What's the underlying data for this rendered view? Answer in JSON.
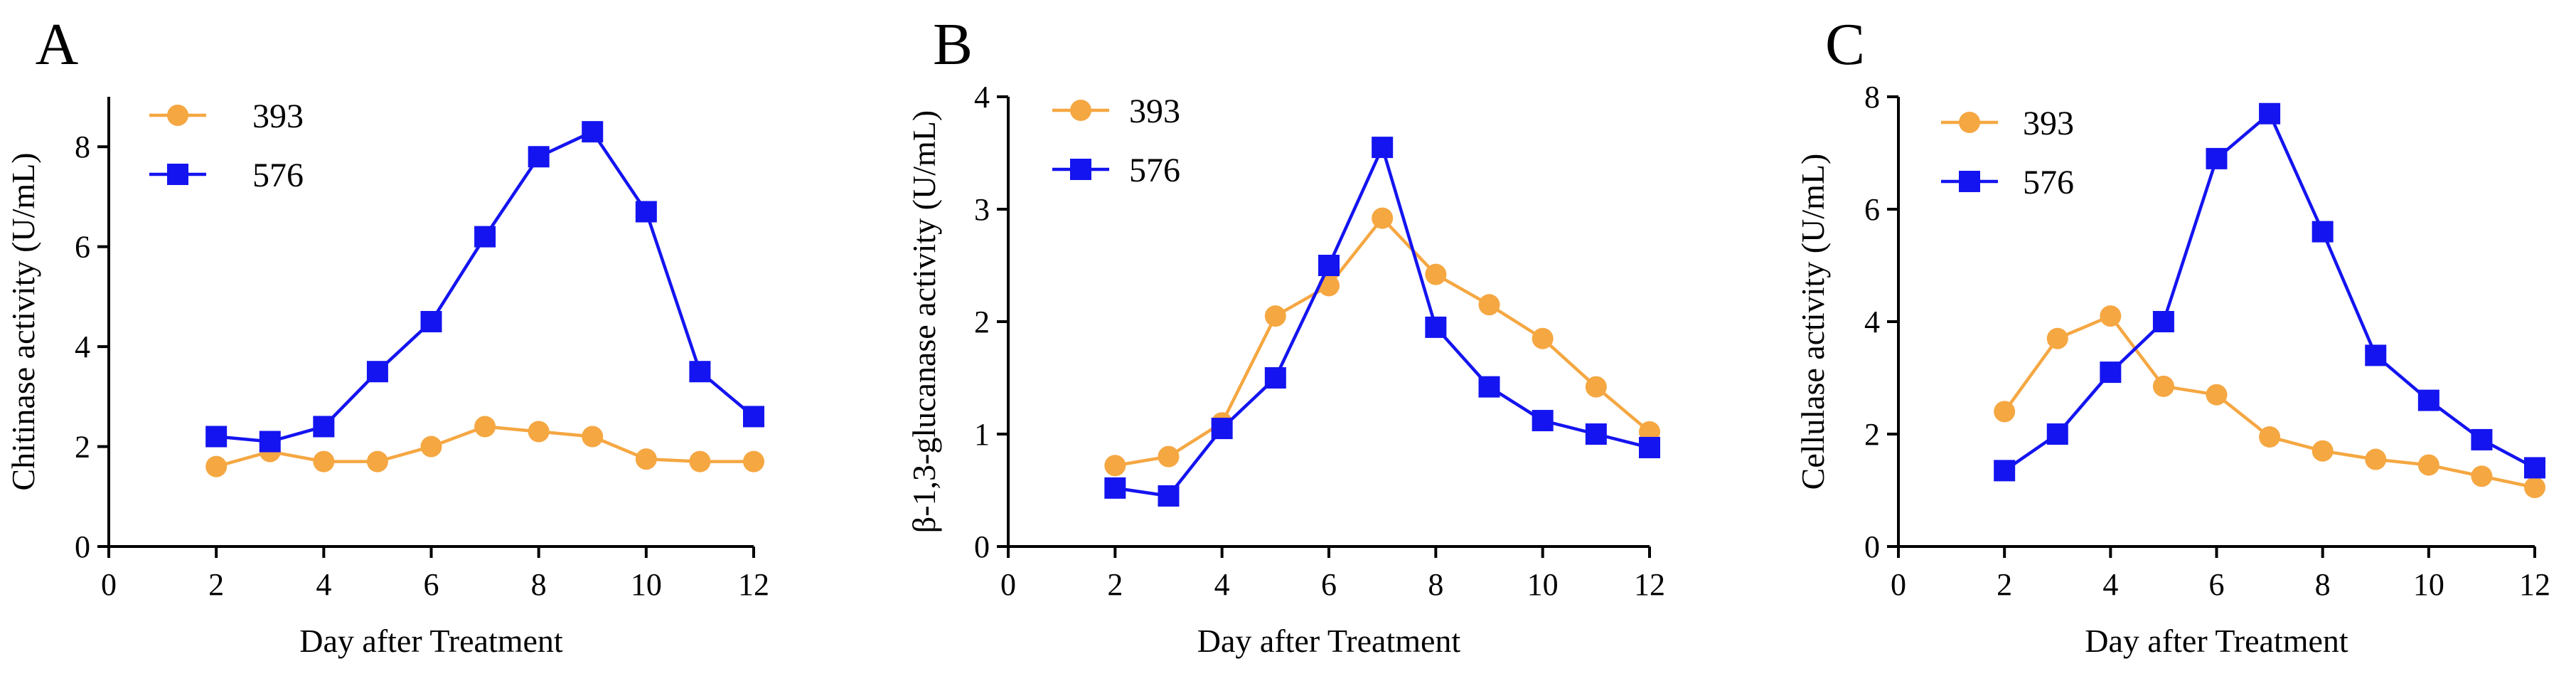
{
  "colors": {
    "series_393": "#F5A742",
    "series_576": "#1414F0",
    "axis": "#000000"
  },
  "legend": {
    "labels": [
      "393",
      "576"
    ],
    "placement": "top-left"
  },
  "chart_data": [
    {
      "panel": "A",
      "type": "line",
      "xlabel": "Day after Treatment",
      "ylabel": "Chitinase activity (U/mL)",
      "xlim": [
        0,
        12
      ],
      "ylim": [
        0,
        9
      ],
      "xticks": [
        0,
        2,
        4,
        6,
        8,
        10,
        12
      ],
      "yticks": [
        0,
        2,
        4,
        6,
        8
      ],
      "x": [
        2,
        3,
        4,
        5,
        6,
        7,
        8,
        9,
        10,
        11,
        12
      ],
      "series": [
        {
          "name": "393",
          "values": [
            1.6,
            1.9,
            1.7,
            1.7,
            2.0,
            2.4,
            2.3,
            2.2,
            1.75,
            1.7,
            1.7
          ]
        },
        {
          "name": "576",
          "values": [
            2.2,
            2.1,
            2.4,
            3.5,
            4.5,
            6.2,
            7.8,
            8.3,
            6.7,
            3.5,
            2.6
          ]
        }
      ]
    },
    {
      "panel": "B",
      "type": "line",
      "xlabel": "Day after Treatment",
      "ylabel": "β-1,3-glucanase activity (U/mL)",
      "xlim": [
        0,
        12
      ],
      "ylim": [
        0,
        4
      ],
      "xticks": [
        0,
        2,
        4,
        6,
        8,
        10,
        12
      ],
      "yticks": [
        0,
        1,
        2,
        3,
        4
      ],
      "x": [
        2,
        3,
        4,
        5,
        6,
        7,
        8,
        9,
        10,
        11,
        12
      ],
      "series": [
        {
          "name": "393",
          "values": [
            0.72,
            0.8,
            1.1,
            2.05,
            2.32,
            2.92,
            2.42,
            2.15,
            1.85,
            1.42,
            1.02
          ]
        },
        {
          "name": "576",
          "values": [
            0.52,
            0.45,
            1.05,
            1.5,
            2.5,
            3.55,
            1.95,
            1.42,
            1.12,
            1.0,
            0.88
          ]
        }
      ]
    },
    {
      "panel": "C",
      "type": "line",
      "xlabel": "Day after Treatment",
      "ylabel": "Cellulase activity (U/mL)",
      "xlim": [
        0,
        12
      ],
      "ylim": [
        0,
        8
      ],
      "xticks": [
        0,
        2,
        4,
        6,
        8,
        10,
        12
      ],
      "yticks": [
        0,
        2,
        4,
        6,
        8
      ],
      "x": [
        2,
        3,
        4,
        5,
        6,
        7,
        8,
        9,
        10,
        11,
        12
      ],
      "series": [
        {
          "name": "393",
          "values": [
            2.4,
            3.7,
            4.1,
            2.85,
            2.7,
            1.95,
            1.7,
            1.55,
            1.45,
            1.25,
            1.05
          ]
        },
        {
          "name": "576",
          "values": [
            1.35,
            2.0,
            3.1,
            4.0,
            6.9,
            7.7,
            5.6,
            3.4,
            2.6,
            1.9,
            1.4
          ]
        }
      ]
    }
  ]
}
